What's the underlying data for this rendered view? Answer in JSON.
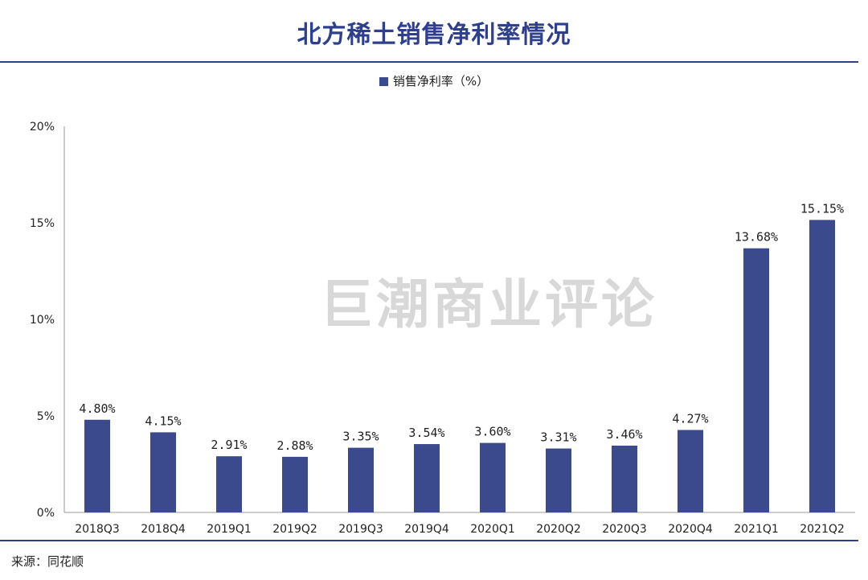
{
  "header": {
    "title": "北方稀土销售净利率情况"
  },
  "legend": {
    "label": "销售净利率（%）"
  },
  "watermark": "巨潮商业评论",
  "footer": {
    "source": "来源：同花顺"
  },
  "colors": {
    "bar": "#3b4a8c",
    "title": "#2e3f8c"
  },
  "chart_data": {
    "type": "bar",
    "categories": [
      "2018Q3",
      "2018Q4",
      "2019Q1",
      "2019Q2",
      "2019Q3",
      "2019Q4",
      "2020Q1",
      "2020Q2",
      "2020Q3",
      "2020Q4",
      "2021Q1",
      "2021Q2"
    ],
    "series": [
      {
        "name": "销售净利率（%）",
        "values": [
          4.8,
          4.15,
          2.91,
          2.88,
          3.35,
          3.54,
          3.6,
          3.31,
          3.46,
          4.27,
          13.68,
          15.15
        ]
      }
    ],
    "data_labels": [
      "4.80%",
      "4.15%",
      "2.91%",
      "2.88%",
      "3.35%",
      "3.54%",
      "3.60%",
      "3.31%",
      "3.46%",
      "4.27%",
      "13.68%",
      "15.15%"
    ],
    "y_ticks": [
      {
        "value": 0,
        "label": "0%"
      },
      {
        "value": 5,
        "label": "5%"
      },
      {
        "value": 10,
        "label": "10%"
      },
      {
        "value": 15,
        "label": "15%"
      },
      {
        "value": 20,
        "label": "20%"
      }
    ],
    "ylim": [
      0,
      20
    ],
    "grid": false,
    "legend_position": "top-center"
  }
}
